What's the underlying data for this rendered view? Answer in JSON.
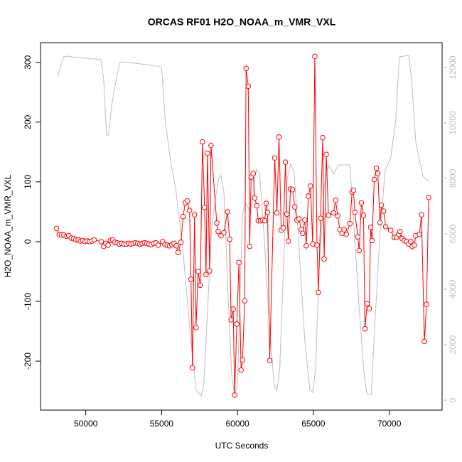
{
  "chart_data": {
    "type": "line",
    "title": "ORCAS RF01 H2O_NOAA_m_VMR_VXL",
    "x_label": "UTC Seconds",
    "y_label": "H2O_NOAA_m_VMR_VXL",
    "xlim": [
      47020,
      73480
    ],
    "xticks": [
      50000,
      55000,
      60000,
      65000,
      70000
    ],
    "ylim": [
      -282,
      333
    ],
    "yticks": [
      -200,
      -100,
      0,
      100,
      200,
      300
    ],
    "y2lim": [
      -359,
      12897
    ],
    "y2ticks": [
      0,
      2000,
      4000,
      6000,
      8000,
      10000,
      12000
    ],
    "series": [
      {
        "color": "#ff0000",
        "markers": true,
        "x": [
          48070,
          48250,
          48400,
          48560,
          48720,
          48880,
          49050,
          49200,
          49350,
          49500,
          49650,
          49800,
          49950,
          50100,
          50250,
          50400,
          50550,
          51020,
          51180,
          51330,
          51470,
          51620,
          51770,
          51920,
          52070,
          52220,
          52370,
          52520,
          52670,
          52820,
          52970,
          53120,
          53270,
          53420,
          53570,
          53720,
          53870,
          54020,
          54170,
          54320,
          54470,
          54620,
          54770,
          55070,
          55220,
          55370,
          55520,
          55670,
          55820,
          55970,
          56085,
          56274,
          56415,
          56557,
          56698,
          56840,
          56934,
          57028,
          57170,
          57264,
          57406,
          57547,
          57689,
          57830,
          57925,
          58019,
          58160,
          58255,
          58632,
          58726,
          58915,
          59104,
          59340,
          59481,
          59575,
          59717,
          59811,
          59953,
          60094,
          60236,
          60330,
          60472,
          60566,
          60708,
          60802,
          60897,
          61038,
          61132,
          61274,
          61368,
          61510,
          61651,
          61793,
          61887,
          61981,
          62123,
          62453,
          62594,
          62736,
          62877,
          63019,
          63160,
          63255,
          63349,
          63491,
          63632,
          63774,
          63915,
          64057,
          64198,
          64292,
          64434,
          64528,
          64670,
          64811,
          64953,
          65094,
          65236,
          65330,
          65472,
          65613,
          65708,
          65849,
          65991,
          66321,
          66462,
          66604,
          66745,
          66887,
          67028,
          67170,
          67406,
          67547,
          67642,
          67736,
          67925,
          68019,
          68160,
          68302,
          68396,
          68538,
          68679,
          68774,
          68868,
          69010,
          69151,
          69245,
          69387,
          69481,
          69623,
          69764,
          70094,
          70330,
          70472,
          70613,
          70708,
          70849,
          70991,
          71132,
          71274,
          71415,
          71509,
          71651,
          71745,
          71981,
          72123,
          72311,
          72453,
          72594
        ],
        "values": [
          22,
          12,
          11,
          11,
          9,
          10,
          6,
          5,
          3,
          3,
          1,
          2,
          0,
          1,
          0,
          1,
          3,
          0,
          -8,
          -3,
          -6,
          2,
          3,
          -1,
          -2,
          -4,
          -3,
          -4,
          -4,
          -3,
          -4,
          -3,
          -2,
          -3,
          -4,
          -3,
          -2,
          -3,
          -4,
          -5,
          -3,
          -2,
          -6,
          0,
          -5,
          -6,
          -7,
          -5,
          -3,
          -7,
          -18,
          -1,
          42,
          65,
          68,
          52,
          -63,
          -211,
          45,
          -144,
          -50,
          -73,
          167,
          57,
          -55,
          148,
          -49,
          161,
          31,
          17,
          10,
          15,
          50,
          4,
          -131,
          -113,
          -257,
          -138,
          -35,
          -215,
          -198,
          -99,
          290,
          260,
          -8,
          108,
          114,
          73,
          60,
          35,
          35,
          36,
          35,
          64,
          49,
          -199,
          140,
          48,
          175,
          19,
          23,
          133,
          46,
          1,
          88,
          87,
          58,
          36,
          38,
          20,
          14,
          36,
          -7,
          76,
          93,
          -4,
          310,
          -6,
          -85,
          39,
          174,
          -29,
          146,
          44,
          48,
          69,
          43,
          20,
          14,
          20,
          12,
          30,
          83,
          86,
          49,
          8,
          -15,
          65,
          44,
          -146,
          -104,
          -112,
          24,
          2,
          104,
          123,
          114,
          32,
          61,
          51,
          25,
          19,
          7,
          7,
          12,
          17,
          5,
          2,
          0,
          -4,
          0,
          -8,
          -6,
          10,
          12,
          45,
          -167,
          -105,
          74
        ]
      },
      {
        "color": "#bebebe",
        "axis": "y2",
        "markers": false,
        "x": [
          48160,
          48538,
          48868,
          49340,
          50047,
          50990,
          51179,
          51368,
          51509,
          51698,
          51934,
          52264,
          52877,
          54764,
          55000,
          55236,
          55613,
          55943,
          56415,
          56887,
          57264,
          57594,
          57783,
          58066,
          58302,
          58538,
          58774,
          58915,
          59104,
          59387,
          59623,
          59811,
          60000,
          60189,
          60330,
          60519,
          60896,
          61132,
          61274,
          61462,
          61745,
          62076,
          62406,
          62594,
          62783,
          63019,
          63255,
          63491,
          63727,
          64057,
          64434,
          64764,
          64953,
          65142,
          65377,
          65708,
          65991,
          66321,
          66651,
          67406,
          67642,
          67972,
          68349,
          68538,
          68821,
          69010,
          69387,
          69717,
          70094,
          70425,
          70660,
          71274,
          71462,
          71745,
          72217,
          72594
        ],
        "values": [
          11692,
          12385,
          12410,
          12359,
          12333,
          12282,
          11615,
          9564,
          9564,
          10590,
          11359,
          12205,
          12179,
          12051,
          11974,
          10077,
          8538,
          7564,
          5333,
          2385,
          385,
          154,
          590,
          3667,
          6231,
          7256,
          8026,
          8103,
          7513,
          3667,
          846,
          205,
          590,
          4179,
          6744,
          7128,
          6744,
          8026,
          8333,
          8154,
          5974,
          2897,
          590,
          333,
          1103,
          4692,
          7897,
          8538,
          8231,
          5462,
          2128,
          385,
          282,
          1103,
          4692,
          7718,
          8487,
          8154,
          8487,
          8487,
          6487,
          3667,
          846,
          205,
          205,
          2385,
          5974,
          8282,
          8744,
          10077,
          12385,
          12436,
          11615,
          9308,
          8077,
          7897
        ]
      }
    ]
  }
}
